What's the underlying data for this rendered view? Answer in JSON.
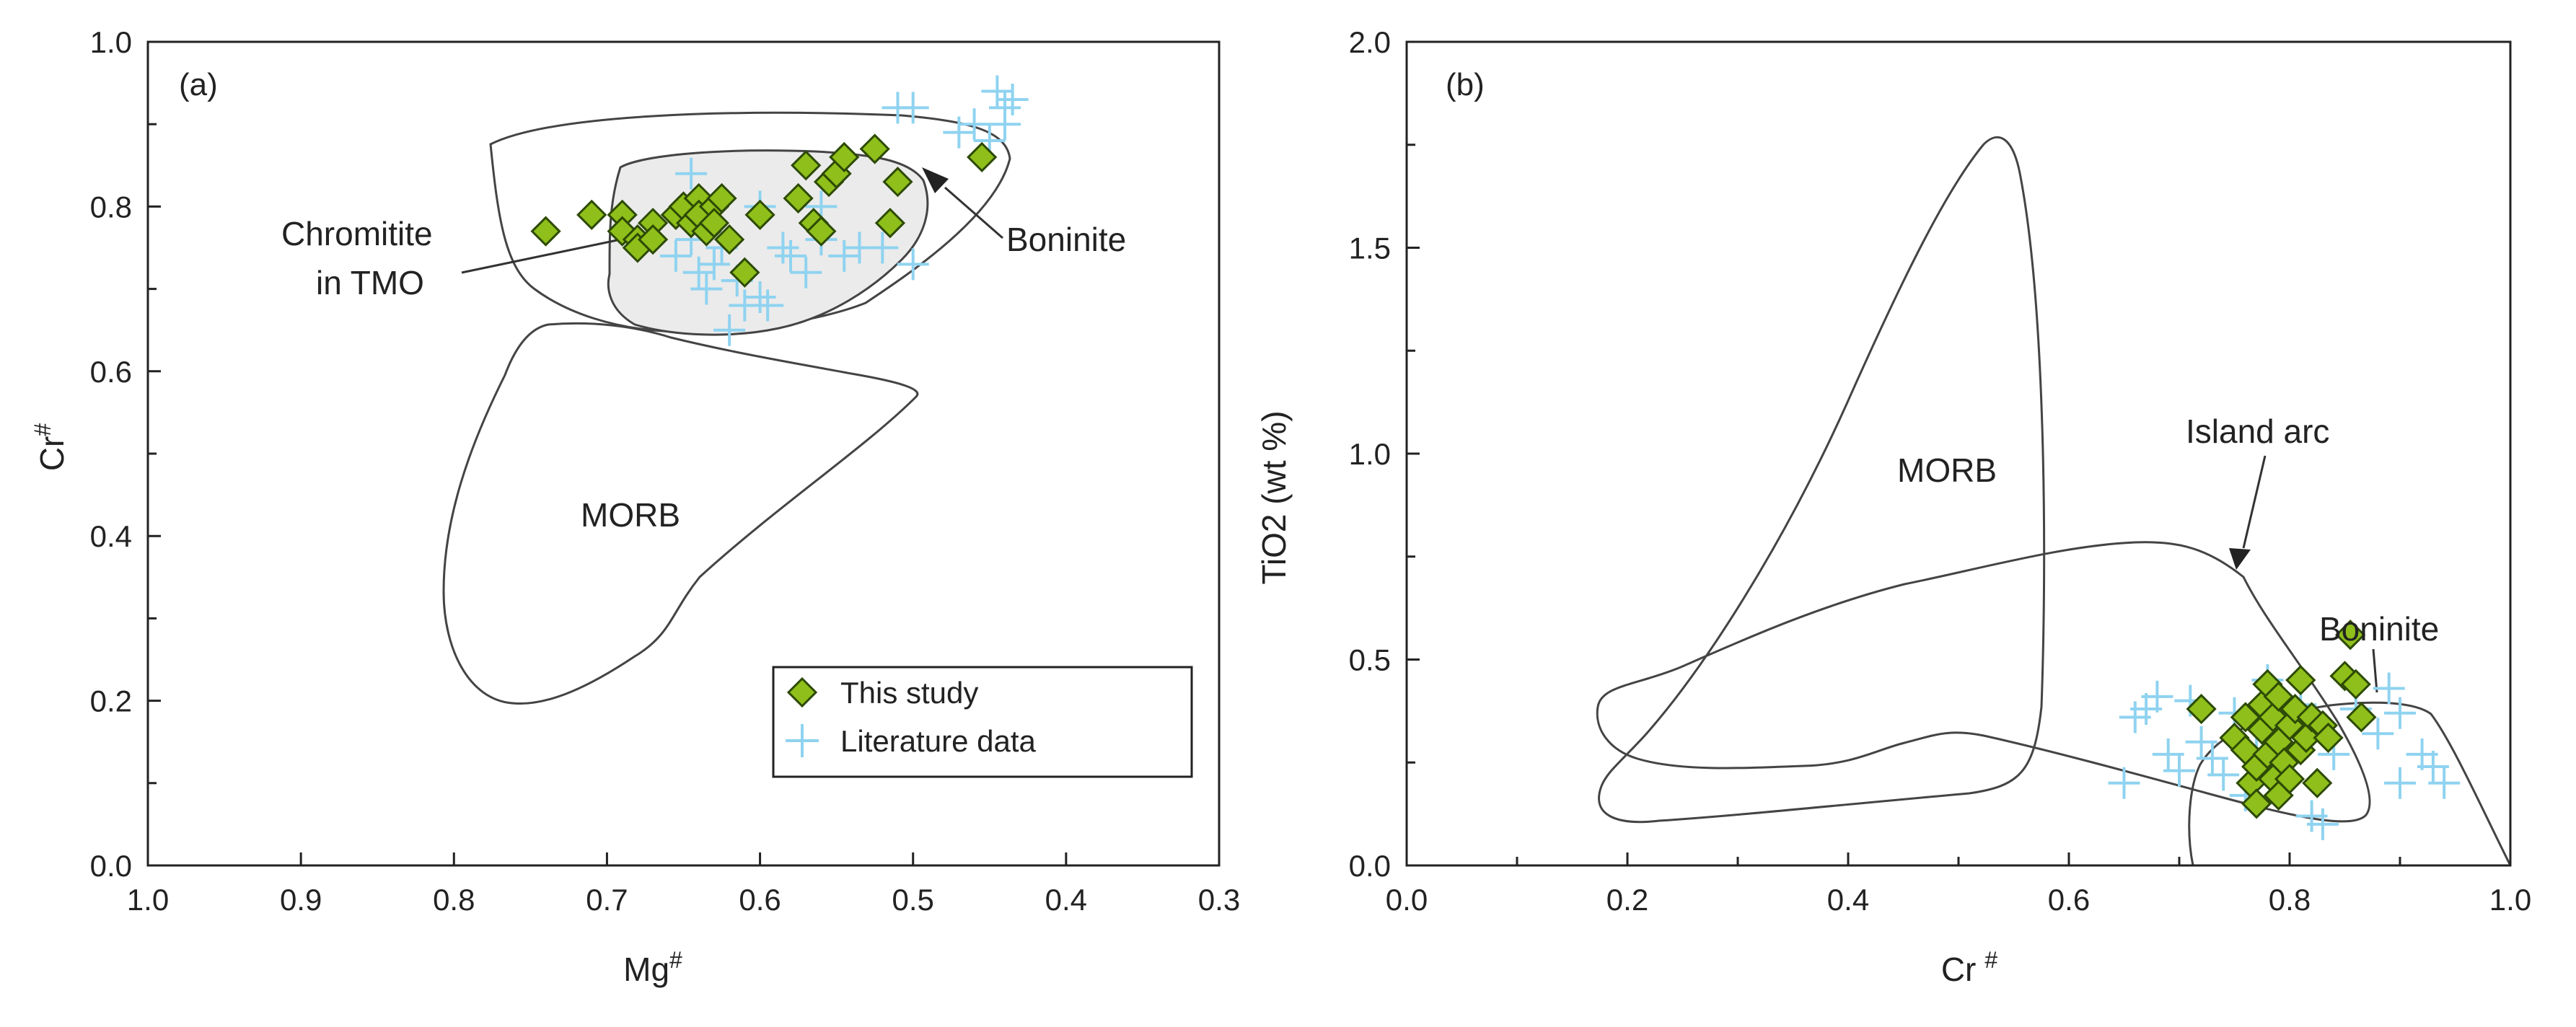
{
  "colors": {
    "this_study_fill": "#8fbf1a",
    "this_study_stroke": "#2d4a06",
    "literature": "#8fd3f0",
    "field_line": "#444444",
    "boninite_fill": "#ebebeb"
  },
  "chart_data": [
    {
      "type": "scatter",
      "panel_label": "(a)",
      "xlabel": "Mg",
      "xlabel_sup": "#",
      "ylabel": "Cr",
      "ylabel_sup": "#",
      "xlim": [
        1.0,
        0.3
      ],
      "ylim": [
        0.0,
        1.0
      ],
      "x_reversed": true,
      "x_ticks": [
        "1.0",
        "0.9",
        "0.8",
        "0.7",
        "0.6",
        "0.5",
        "0.4",
        "0.3"
      ],
      "y_ticks": [
        "0.0",
        "0.2",
        "0.4",
        "0.6",
        "0.8",
        "1.0"
      ],
      "field_labels": [
        "Chromitite",
        "in TMO",
        "Boninite",
        "MORB"
      ],
      "legend": {
        "position": "bottom-right",
        "entries": [
          "This study",
          "Literature data"
        ]
      },
      "series": [
        {
          "name": "This study",
          "marker": "diamond",
          "points": [
            [
              0.74,
              0.77
            ],
            [
              0.71,
              0.79
            ],
            [
              0.69,
              0.79
            ],
            [
              0.69,
              0.77
            ],
            [
              0.68,
              0.76
            ],
            [
              0.68,
              0.75
            ],
            [
              0.67,
              0.78
            ],
            [
              0.67,
              0.76
            ],
            [
              0.655,
              0.79
            ],
            [
              0.65,
              0.8
            ],
            [
              0.645,
              0.78
            ],
            [
              0.64,
              0.81
            ],
            [
              0.64,
              0.79
            ],
            [
              0.635,
              0.77
            ],
            [
              0.63,
              0.8
            ],
            [
              0.63,
              0.78
            ],
            [
              0.625,
              0.81
            ],
            [
              0.62,
              0.76
            ],
            [
              0.61,
              0.72
            ],
            [
              0.6,
              0.79
            ],
            [
              0.575,
              0.81
            ],
            [
              0.57,
              0.85
            ],
            [
              0.565,
              0.78
            ],
            [
              0.56,
              0.77
            ],
            [
              0.555,
              0.83
            ],
            [
              0.55,
              0.84
            ],
            [
              0.545,
              0.86
            ],
            [
              0.525,
              0.87
            ],
            [
              0.515,
              0.78
            ],
            [
              0.51,
              0.83
            ],
            [
              0.455,
              0.86
            ]
          ]
        },
        {
          "name": "Literature data",
          "marker": "plus",
          "points": [
            [
              0.655,
              0.74
            ],
            [
              0.645,
              0.76
            ],
            [
              0.64,
              0.72
            ],
            [
              0.635,
              0.7
            ],
            [
              0.63,
              0.73
            ],
            [
              0.625,
              0.75
            ],
            [
              0.615,
              0.71
            ],
            [
              0.61,
              0.68
            ],
            [
              0.6,
              0.69
            ],
            [
              0.595,
              0.68
            ],
            [
              0.585,
              0.75
            ],
            [
              0.58,
              0.74
            ],
            [
              0.57,
              0.72
            ],
            [
              0.56,
              0.76
            ],
            [
              0.545,
              0.74
            ],
            [
              0.535,
              0.75
            ],
            [
              0.62,
              0.65
            ],
            [
              0.645,
              0.84
            ],
            [
              0.6,
              0.8
            ],
            [
              0.56,
              0.8
            ],
            [
              0.52,
              0.75
            ],
            [
              0.5,
              0.73
            ],
            [
              0.51,
              0.92
            ],
            [
              0.5,
              0.92
            ],
            [
              0.47,
              0.89
            ],
            [
              0.46,
              0.9
            ],
            [
              0.45,
              0.88
            ],
            [
              0.445,
              0.94
            ],
            [
              0.44,
              0.92
            ],
            [
              0.44,
              0.9
            ],
            [
              0.435,
              0.93
            ]
          ]
        }
      ]
    },
    {
      "type": "scatter",
      "panel_label": "(b)",
      "xlabel": "Cr",
      "xlabel_sup": "#",
      "ylabel": "TiO2 (wt %)",
      "xlim": [
        0.0,
        1.0
      ],
      "ylim": [
        0.0,
        2.0
      ],
      "x_ticks": [
        "0.0",
        "0.2",
        "0.4",
        "0.6",
        "0.8",
        "1.0"
      ],
      "y_ticks": [
        "0.0",
        "0.5",
        "1.0",
        "1.5",
        "2.0"
      ],
      "field_labels": [
        "MORB",
        "Island arc",
        "Boninite"
      ],
      "series": [
        {
          "name": "This study",
          "marker": "diamond",
          "points": [
            [
              0.72,
              0.38
            ],
            [
              0.75,
              0.31
            ],
            [
              0.76,
              0.36
            ],
            [
              0.76,
              0.28
            ],
            [
              0.765,
              0.2
            ],
            [
              0.77,
              0.15
            ],
            [
              0.77,
              0.24
            ],
            [
              0.775,
              0.33
            ],
            [
              0.775,
              0.39
            ],
            [
              0.78,
              0.27
            ],
            [
              0.78,
              0.44
            ],
            [
              0.785,
              0.21
            ],
            [
              0.785,
              0.36
            ],
            [
              0.79,
              0.17
            ],
            [
              0.79,
              0.3
            ],
            [
              0.79,
              0.41
            ],
            [
              0.795,
              0.25
            ],
            [
              0.8,
              0.34
            ],
            [
              0.8,
              0.21
            ],
            [
              0.805,
              0.38
            ],
            [
              0.81,
              0.45
            ],
            [
              0.81,
              0.28
            ],
            [
              0.815,
              0.31
            ],
            [
              0.82,
              0.36
            ],
            [
              0.825,
              0.2
            ],
            [
              0.83,
              0.34
            ],
            [
              0.835,
              0.31
            ],
            [
              0.85,
              0.46
            ],
            [
              0.855,
              0.56
            ],
            [
              0.86,
              0.44
            ],
            [
              0.865,
              0.36
            ]
          ]
        },
        {
          "name": "Literature data",
          "marker": "plus",
          "points": [
            [
              0.65,
              0.2
            ],
            [
              0.66,
              0.36
            ],
            [
              0.67,
              0.38
            ],
            [
              0.68,
              0.41
            ],
            [
              0.69,
              0.27
            ],
            [
              0.7,
              0.23
            ],
            [
              0.71,
              0.4
            ],
            [
              0.72,
              0.3
            ],
            [
              0.73,
              0.26
            ],
            [
              0.74,
              0.22
            ],
            [
              0.75,
              0.37
            ],
            [
              0.76,
              0.17
            ],
            [
              0.77,
              0.28
            ],
            [
              0.78,
              0.45
            ],
            [
              0.79,
              0.24
            ],
            [
              0.8,
              0.32
            ],
            [
              0.81,
              0.39
            ],
            [
              0.82,
              0.12
            ],
            [
              0.83,
              0.1
            ],
            [
              0.84,
              0.27
            ],
            [
              0.86,
              0.38
            ],
            [
              0.88,
              0.32
            ],
            [
              0.89,
              0.43
            ],
            [
              0.9,
              0.37
            ],
            [
              0.9,
              0.2
            ],
            [
              0.92,
              0.27
            ],
            [
              0.93,
              0.24
            ],
            [
              0.94,
              0.2
            ]
          ]
        }
      ]
    }
  ]
}
